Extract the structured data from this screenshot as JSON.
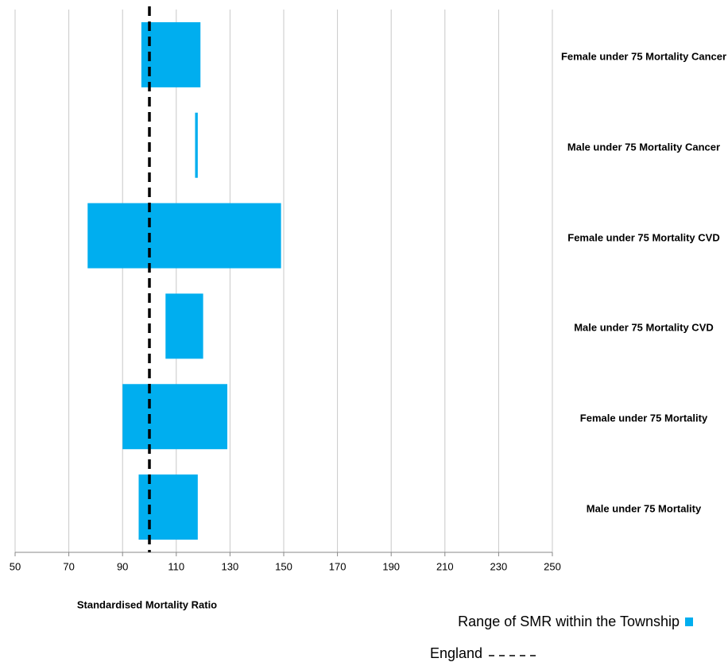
{
  "chart_data": {
    "type": "range-bar",
    "categories": [
      "Female under 75 Mortality Cancer",
      "Male under 75 Mortality Cancer",
      "Female under 75 Mortality CVD",
      "Male under 75 Mortality CVD",
      "Female under 75 Mortality",
      "Male under 75 Mortality"
    ],
    "series": [
      {
        "name": "Range of SMR within the Township",
        "color": "#00aeef",
        "low": [
          97,
          117,
          77,
          106,
          90,
          96
        ],
        "high": [
          119,
          118,
          149,
          120,
          129,
          118
        ]
      }
    ],
    "reference_line": {
      "name": "England",
      "value": 100,
      "color": "#000000"
    },
    "xlabel": "Standardised Mortality Ratio",
    "xlim": [
      50,
      250
    ],
    "xticks": [
      50,
      70,
      90,
      110,
      130,
      150,
      170,
      190,
      210,
      230,
      250
    ],
    "grid": true,
    "legend": "bottom-right"
  }
}
